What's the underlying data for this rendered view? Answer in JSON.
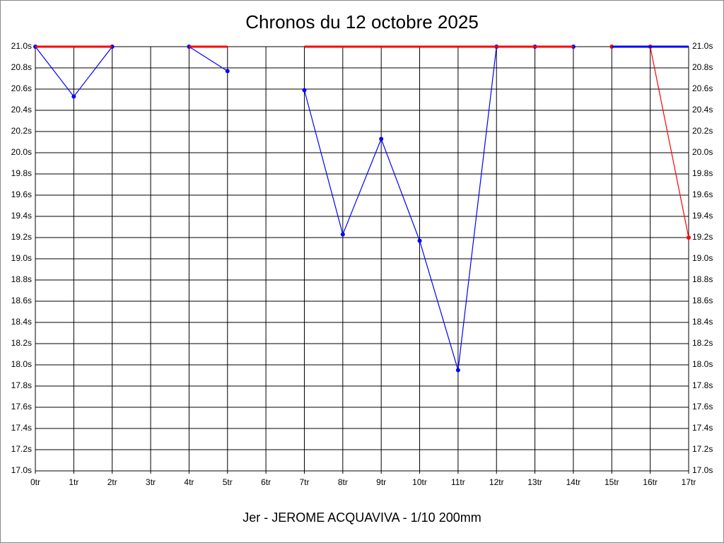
{
  "chart_data": {
    "type": "line",
    "title": "Chronos du 12 octobre 2025",
    "xlabel": "Jer - JEROME ACQUAVIVA - 1/10 200mm",
    "categories": [
      "0tr",
      "1tr",
      "2tr",
      "3tr",
      "4tr",
      "5tr",
      "6tr",
      "7tr",
      "8tr",
      "9tr",
      "10tr",
      "11tr",
      "12tr",
      "13tr",
      "14tr",
      "15tr",
      "16tr",
      "17tr"
    ],
    "series": [
      {
        "color": "#0000ff",
        "width": 1.2,
        "markers": true,
        "values": [
          21.0,
          20.53,
          21.0,
          null,
          21.0,
          20.77,
          null,
          20.59,
          19.23,
          20.13,
          19.17,
          17.95,
          21.0,
          21.0,
          21.0,
          null,
          null,
          null
        ]
      },
      {
        "color": "#ff0000",
        "width": 3,
        "markers": false,
        "values": [
          21.0,
          21.0,
          21.0,
          null,
          21.0,
          21.0,
          null,
          21.0,
          21.0,
          21.0,
          21.0,
          21.0,
          21.0,
          21.0,
          21.0,
          null,
          null,
          null
        ]
      },
      {
        "color": "#ff0000",
        "width": 1.2,
        "markers": true,
        "values": [
          null,
          null,
          null,
          null,
          null,
          null,
          null,
          null,
          null,
          null,
          null,
          null,
          null,
          null,
          null,
          21.0,
          21.0,
          19.2
        ]
      },
      {
        "color": "#0000ff",
        "width": 3,
        "markers": false,
        "values": [
          null,
          null,
          null,
          null,
          null,
          null,
          null,
          null,
          null,
          null,
          null,
          null,
          null,
          null,
          null,
          21.0,
          21.0,
          21.0
        ]
      }
    ],
    "ylim": [
      17.0,
      21.0
    ],
    "yticks": [
      {
        "value": 17.0,
        "label": "17.0s"
      },
      {
        "value": 17.2,
        "label": "17.2s"
      },
      {
        "value": 17.4,
        "label": "17.4s"
      },
      {
        "value": 17.6,
        "label": "17.6s"
      },
      {
        "value": 17.8,
        "label": "17.8s"
      },
      {
        "value": 18.0,
        "label": "18.0s"
      },
      {
        "value": 18.2,
        "label": "18.2s"
      },
      {
        "value": 18.4,
        "label": "18.4s"
      },
      {
        "value": 18.6,
        "label": "18.6s"
      },
      {
        "value": 18.8,
        "label": "18.8s"
      },
      {
        "value": 19.0,
        "label": "19.0s"
      },
      {
        "value": 19.2,
        "label": "19.2s"
      },
      {
        "value": 19.4,
        "label": "19.4s"
      },
      {
        "value": 19.6,
        "label": "19.6s"
      },
      {
        "value": 19.8,
        "label": "19.8s"
      },
      {
        "value": 20.0,
        "label": "20.0s"
      },
      {
        "value": 20.2,
        "label": "20.2s"
      },
      {
        "value": 20.4,
        "label": "20.4s"
      },
      {
        "value": 20.6,
        "label": "20.6s"
      },
      {
        "value": 20.8,
        "label": "20.8s"
      },
      {
        "value": 21.0,
        "label": "21.0s"
      }
    ],
    "grid": true
  }
}
